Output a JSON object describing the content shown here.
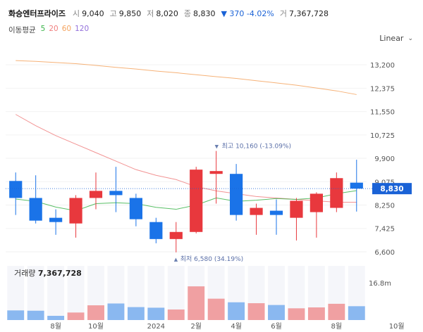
{
  "header": {
    "name": "화승엔터프라이즈",
    "open_label": "시",
    "open_value": "9,040",
    "high_label": "고",
    "high_value": "9,850",
    "low_label": "저",
    "low_value": "8,020",
    "close_label": "종",
    "close_value": "8,830",
    "change": "▼ 370 -4.02%",
    "volume_label": "거",
    "volume_value": "7,367,728"
  },
  "moving_average": {
    "label": "이동평균",
    "periods": [
      {
        "label": "5",
        "color": "#3cb44b"
      },
      {
        "label": "20",
        "color": "#f08080"
      },
      {
        "label": "60",
        "color": "#f4a460"
      },
      {
        "label": "120",
        "color": "#9370db"
      }
    ]
  },
  "scale_selector": {
    "label": "Linear",
    "icon": "chevron-down-icon"
  },
  "current_price": {
    "label": "8,830",
    "color": "#1a62d6"
  },
  "annotations": {
    "high": "최고 10,160 (-13.09%)",
    "low": "최저 6,580 (34.19%)"
  },
  "volume_panel": {
    "label": "거래량",
    "value": "7,367,728",
    "axis_label": "16.8m"
  },
  "colors": {
    "up": "#e8383d",
    "down": "#1a73e8",
    "up_volume": "#f0a0a2",
    "down_volume": "#8ab8f0"
  },
  "chart_data": {
    "type": "candlestick",
    "y_ticks": [
      "13,200",
      "12,375",
      "11,550",
      "10,725",
      "9,900",
      "9,075",
      "8,250",
      "7,425",
      "6,600"
    ],
    "ylim": [
      6500,
      13700
    ],
    "x_ticks": [
      {
        "label": "8월",
        "index": 2
      },
      {
        "label": "10월",
        "index": 4
      },
      {
        "label": "2024",
        "index": 7
      },
      {
        "label": "2월",
        "index": 9
      },
      {
        "label": "4월",
        "index": 11
      },
      {
        "label": "6월",
        "index": 13
      },
      {
        "label": "8월",
        "index": 16
      },
      {
        "label": "10월",
        "index": 19
      }
    ],
    "candles": [
      {
        "open": 9100,
        "high": 9400,
        "low": 7900,
        "close": 8500
      },
      {
        "open": 8500,
        "high": 9300,
        "low": 7600,
        "close": 7700
      },
      {
        "open": 7800,
        "high": 8100,
        "low": 7200,
        "close": 7650
      },
      {
        "open": 7600,
        "high": 8600,
        "low": 7100,
        "close": 8500
      },
      {
        "open": 8500,
        "high": 9400,
        "low": 8100,
        "close": 8750
      },
      {
        "open": 8750,
        "high": 9600,
        "low": 8000,
        "close": 8600
      },
      {
        "open": 8500,
        "high": 8650,
        "low": 7500,
        "close": 7750
      },
      {
        "open": 7650,
        "high": 7800,
        "low": 6900,
        "close": 7050
      },
      {
        "open": 7050,
        "high": 7650,
        "low": 6580,
        "close": 7300
      },
      {
        "open": 7300,
        "high": 9600,
        "low": 7250,
        "close": 9500
      },
      {
        "open": 9350,
        "high": 10160,
        "low": 8300,
        "close": 9450
      },
      {
        "open": 9350,
        "high": 9700,
        "low": 7700,
        "close": 7900
      },
      {
        "open": 7900,
        "high": 8300,
        "low": 7200,
        "close": 8150
      },
      {
        "open": 8050,
        "high": 8450,
        "low": 7200,
        "close": 7900
      },
      {
        "open": 7800,
        "high": 8500,
        "low": 7000,
        "close": 8400
      },
      {
        "open": 8000,
        "high": 8700,
        "low": 7100,
        "close": 8650
      },
      {
        "open": 8150,
        "high": 9400,
        "low": 8000,
        "close": 9200
      },
      {
        "open": 9040,
        "high": 9850,
        "low": 8020,
        "close": 8830
      }
    ],
    "ma5": [
      8460,
      8380,
      8180,
      8050,
      8300,
      8330,
      8300,
      8170,
      8100,
      8250,
      8500,
      8380,
      8420,
      8480,
      8450,
      8500,
      8650,
      8760
    ],
    "ma20": [
      11450,
      11050,
      10700,
      10400,
      10100,
      9800,
      9500,
      9300,
      9150,
      8900,
      8750,
      8650,
      8550,
      8500,
      8450,
      8400,
      8350,
      8350
    ],
    "ma60": [
      13350,
      13320,
      13280,
      13240,
      13180,
      13110,
      13050,
      12980,
      12920,
      12850,
      12780,
      12720,
      12640,
      12560,
      12480,
      12380,
      12280,
      12150
    ],
    "volume": [
      3.2,
      3.1,
      1.4,
      2.5,
      4.9,
      5.5,
      4.3,
      4.1,
      3.5,
      11.2,
      7.1,
      5.9,
      5.6,
      5.0,
      3.9,
      4.2,
      5.4,
      4.6
    ],
    "volume_max": 18
  }
}
